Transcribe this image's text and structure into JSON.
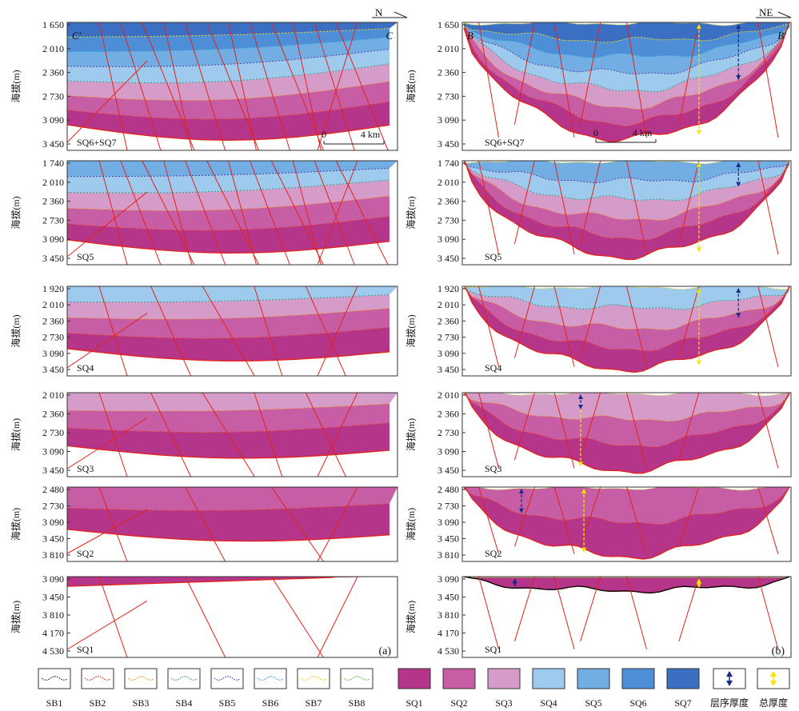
{
  "left_column": {
    "tag": "(a)",
    "compass": "N",
    "end_left": "C′",
    "end_right": "C",
    "scale_zero": "0",
    "scale_km": "4 km"
  },
  "right_column": {
    "tag": "(b)",
    "compass": "NE",
    "end_left": "B",
    "end_right": "B′",
    "scale_zero": "0",
    "scale_km": "4 km"
  },
  "y_axis_title": "海拔(m)",
  "rows": [
    {
      "name": "SQ6+SQ7",
      "ticks": [
        "1 650",
        "2 010",
        "2 360",
        "2 730",
        "3 090",
        "3 450"
      ]
    },
    {
      "name": "SQ5",
      "ticks": [
        "1 740",
        "2 010",
        "2 360",
        "2 730",
        "3 090",
        "3 450"
      ]
    },
    {
      "name": "SQ4",
      "ticks": [
        "1 920",
        "2 010",
        "2 360",
        "2 730",
        "3 090",
        "3 450"
      ]
    },
    {
      "name": "SQ3",
      "ticks": [
        "2 010",
        "2 360",
        "2 730",
        "3 090",
        "3 450"
      ]
    },
    {
      "name": "SQ2",
      "ticks": [
        "2 480",
        "2 730",
        "3 090",
        "3 450",
        "3 810"
      ]
    },
    {
      "name": "SQ1",
      "ticks": [
        "3 090",
        "3 450",
        "3 810",
        "4 170",
        "4 530"
      ]
    }
  ],
  "legend": {
    "boundaries": [
      {
        "label": "SB1",
        "color": "#222222"
      },
      {
        "label": "SB2",
        "color": "#e0301e"
      },
      {
        "label": "SB3",
        "color": "#e8912e"
      },
      {
        "label": "SB4",
        "color": "#2aa58a"
      },
      {
        "label": "SB5",
        "color": "#4c3fa6"
      },
      {
        "label": "SB6",
        "color": "#2ba6d8"
      },
      {
        "label": "SB7",
        "color": "#e6d51c"
      },
      {
        "label": "SB8",
        "color": "#67b83a"
      }
    ],
    "sequences": [
      {
        "label": "SQ1",
        "color": "#b5358a"
      },
      {
        "label": "SQ2",
        "color": "#c75da5"
      },
      {
        "label": "SQ3",
        "color": "#d59cc9"
      },
      {
        "label": "SQ4",
        "color": "#9ecaee"
      },
      {
        "label": "SQ5",
        "color": "#72aee3"
      },
      {
        "label": "SQ6",
        "color": "#4e8ed6"
      },
      {
        "label": "SQ7",
        "color": "#3a6fc4"
      }
    ],
    "arrows": [
      {
        "label": "层序厚度",
        "color": "#1a2a8c"
      },
      {
        "label": "总厚度",
        "color": "#f2e600"
      }
    ]
  },
  "colors": {
    "fault": "#e2231a",
    "frame": "#333333",
    "sb1_line": "#000000"
  }
}
